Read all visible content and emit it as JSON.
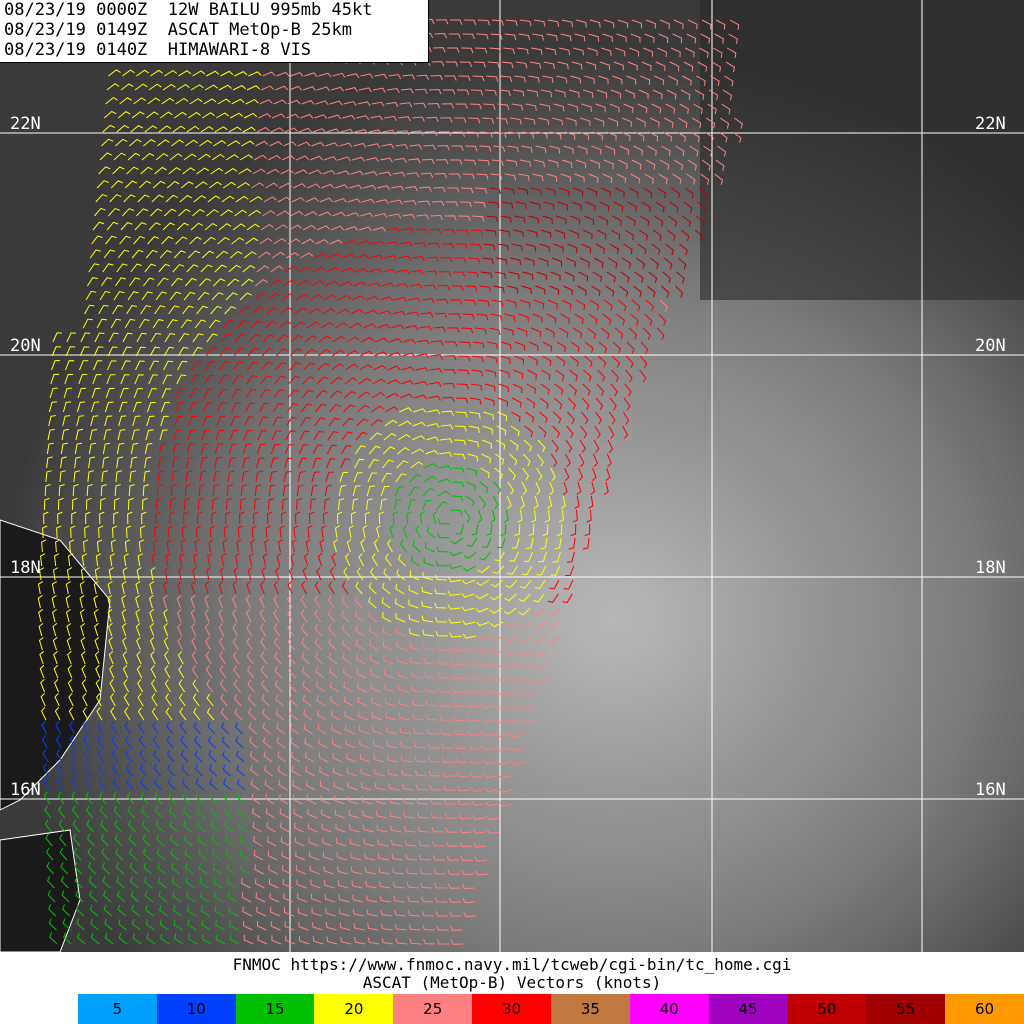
{
  "header": {
    "lines": [
      "08/23/19 0000Z  12W BAILU 995mb 45kt",
      "08/23/19 0149Z  ASCAT MetOp-B 25km",
      "08/23/19 0140Z  HIMAWARI-8 VIS"
    ]
  },
  "map": {
    "latitude_labels": [
      "22N",
      "20N",
      "18N",
      "16N"
    ]
  },
  "footer": {
    "source": "FNMOC https://www.fnmoc.navy.mil/tcweb/cgi-bin/tc_home.cgi",
    "scale_title": "ASCAT (MetOp-B) Vectors (knots)"
  },
  "legend": {
    "items": [
      {
        "label": 5,
        "color": "#00a0ff"
      },
      {
        "label": 10,
        "color": "#0040ff"
      },
      {
        "label": 15,
        "color": "#00c000"
      },
      {
        "label": 20,
        "color": "#ffff00"
      },
      {
        "label": 25,
        "color": "#ff8080"
      },
      {
        "label": 30,
        "color": "#ff0000"
      },
      {
        "label": 35,
        "color": "#c07840"
      },
      {
        "label": 40,
        "color": "#ff00ff"
      },
      {
        "label": 45,
        "color": "#a000c0"
      },
      {
        "label": 50,
        "color": "#c00000"
      },
      {
        "label": 55,
        "color": "#a00000"
      },
      {
        "label": 60,
        "color": "#ff9900"
      }
    ]
  }
}
